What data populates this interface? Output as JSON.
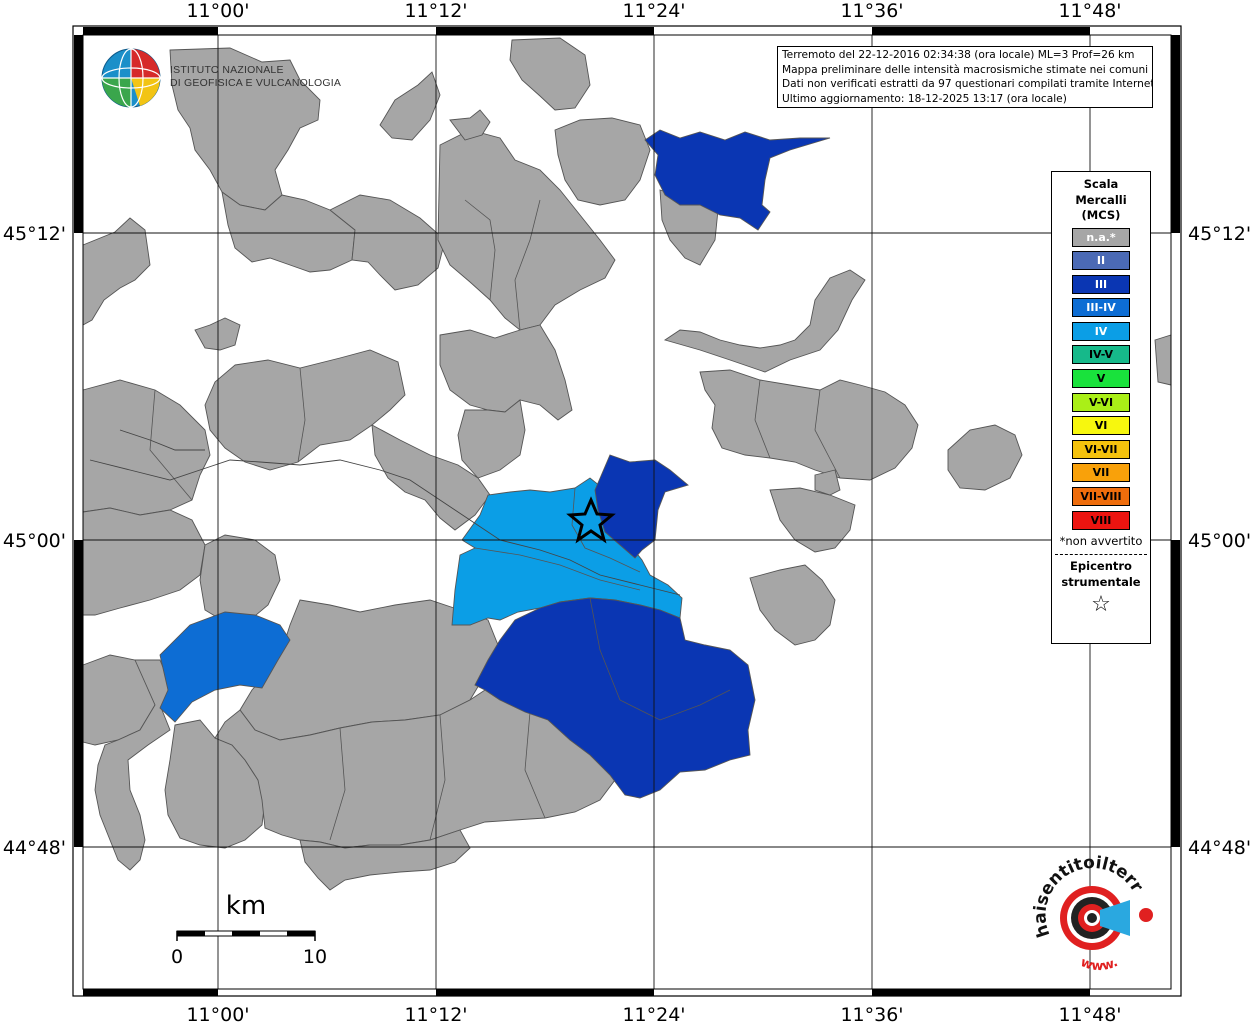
{
  "map": {
    "axis_ticks": {
      "lon": [
        "11°00'",
        "11°12'",
        "11°24'",
        "11°36'",
        "11°48'"
      ],
      "lat": [
        "45°12'",
        "45°00'",
        "44°48'"
      ]
    }
  },
  "logo_ingv": {
    "name_line1": "ISTITUTO NAZIONALE",
    "name_line2": "DI GEOFISICA E VULCANOLOGIA"
  },
  "logo_hsit": {
    "text_primary": "haisentitoilterremoto.it",
    "text_secondary": "www."
  },
  "info": {
    "line1": "Terremoto del 22-12-2016 02:34:38 (ora locale) ML=3 Prof=26 km",
    "line2": "Mappa preliminare delle intensità macrosismiche stimate nei comuni",
    "line3": "Dati non verificati estratti da 97 questionari compilati tramite Internet.",
    "line4": "Ultimo aggiornamento: 18-12-2025 13:17 (ora locale)"
  },
  "legend": {
    "title_line1": "Scala",
    "title_line2": "Mercalli",
    "title_line3": "(MCS)",
    "classes": [
      {
        "label": "n.a.*",
        "color": "#a6a6a6"
      },
      {
        "label": "II",
        "color": "#4b6ab5"
      },
      {
        "label": "III",
        "color": "#0a36b3"
      },
      {
        "label": "III-IV",
        "color": "#0d6dd4"
      },
      {
        "label": "IV",
        "color": "#0b9ee6"
      },
      {
        "label": "IV-V",
        "color": "#16b98a"
      },
      {
        "label": "V",
        "color": "#19e23c"
      },
      {
        "label": "V-VI",
        "color": "#aaef17"
      },
      {
        "label": "VI",
        "color": "#f7f70e"
      },
      {
        "label": "VI-VII",
        "color": "#f4c20d"
      },
      {
        "label": "VII",
        "color": "#f9a10a"
      },
      {
        "label": "VII-VIII",
        "color": "#ef6d0c"
      },
      {
        "label": "VIII",
        "color": "#ec1410"
      }
    ],
    "note": "*non avvertito",
    "epicenter_line1": "Epicentro",
    "epicenter_line2": "strumentale",
    "epicenter_symbol": "☆"
  },
  "scale_bar": {
    "unit": "km",
    "label_start": "0",
    "label_end": "10"
  },
  "colors": {
    "na": "#a6a6a6",
    "III": "#0a36b3",
    "III-IV": "#0d6dd4",
    "IV": "#0b9ee6"
  }
}
